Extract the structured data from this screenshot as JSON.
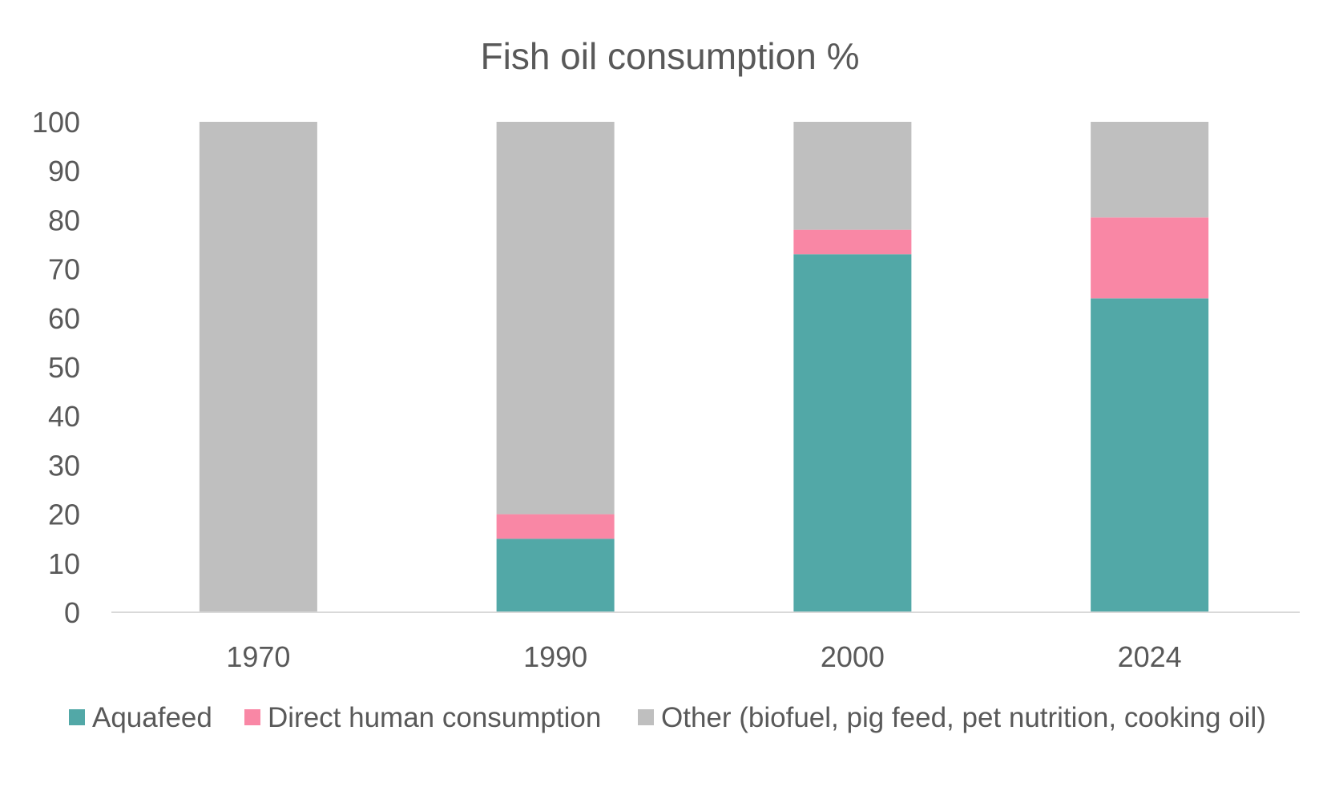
{
  "chart_data": {
    "type": "bar",
    "stacked": true,
    "title": "Fish oil consumption %",
    "xlabel": "",
    "ylabel": "",
    "categories": [
      "1970",
      "1990",
      "2000",
      "2024"
    ],
    "ylim": [
      0,
      100
    ],
    "yticks": [
      "0",
      "10",
      "20",
      "30",
      "40",
      "50",
      "60",
      "70",
      "80",
      "90",
      "100"
    ],
    "grid": false,
    "legend_position": "bottom",
    "series": [
      {
        "name": "Aquafeed",
        "color": "#52A8A7",
        "values": [
          0,
          15,
          73,
          64
        ]
      },
      {
        "name": "Direct human consumption",
        "color": "#F987A5",
        "values": [
          0,
          5,
          5,
          16.5
        ]
      },
      {
        "name": "Other (biofuel, pig feed, pet nutrition, cooking oil)",
        "color": "#BFBFBF",
        "values": [
          100,
          80,
          22,
          19.5
        ]
      }
    ]
  }
}
